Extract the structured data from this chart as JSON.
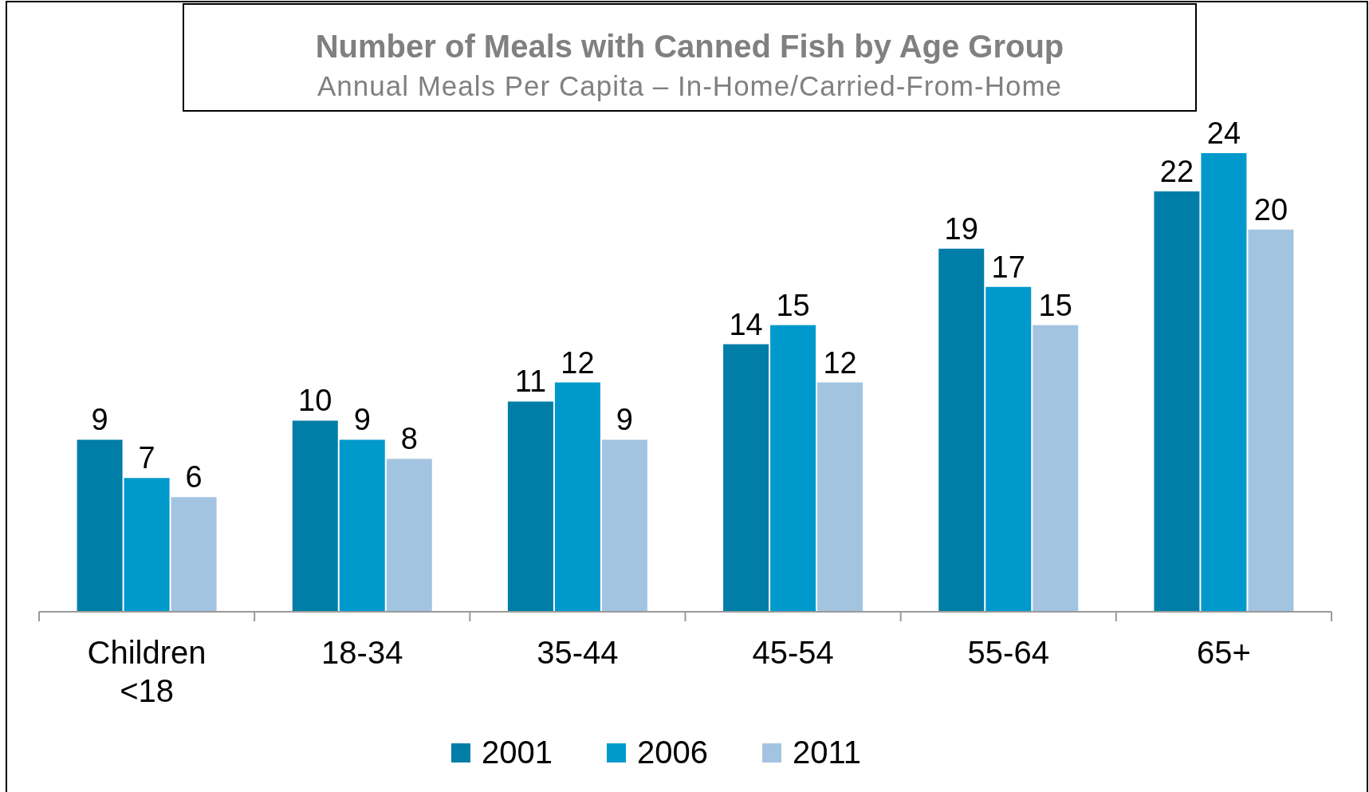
{
  "chart_data": {
    "type": "bar",
    "title": "Number of Meals with Canned Fish by Age Group",
    "subtitle": "Annual Meals Per Capita – In-Home/Carried-From-Home",
    "categories": [
      "Children <18",
      "18-34",
      "35-44",
      "45-54",
      "55-64",
      "65+"
    ],
    "series": [
      {
        "name": "2001",
        "color": "#007ea7",
        "values": [
          9,
          10,
          11,
          14,
          19,
          22
        ]
      },
      {
        "name": "2006",
        "color": "#0099cc",
        "values": [
          7,
          9,
          12,
          15,
          17,
          24
        ]
      },
      {
        "name": "2011",
        "color": "#a3c4e0",
        "values": [
          6,
          8,
          9,
          12,
          15,
          20
        ]
      }
    ],
    "data_labels": true,
    "legend": "bottom",
    "grid": false
  }
}
